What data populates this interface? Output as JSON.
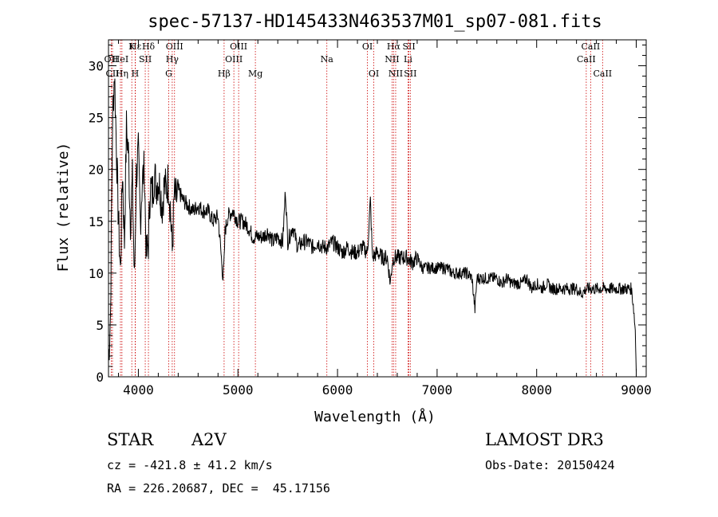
{
  "chart_data": {
    "type": "line",
    "title": "spec-57137-HD145433N463537M01_sp07-081.fits",
    "xlabel": "Wavelength (Å)",
    "ylabel": "Flux (relative)",
    "xlim": [
      3700,
      9100
    ],
    "ylim": [
      0,
      32.5
    ],
    "xticks": [
      4000,
      5000,
      6000,
      7000,
      8000,
      9000
    ],
    "yticks": [
      0,
      5,
      10,
      15,
      20,
      25,
      30
    ],
    "series": [
      {
        "name": "flux",
        "x": [
          3700,
          3720,
          3740,
          3760,
          3780,
          3800,
          3820,
          3840,
          3860,
          3880,
          3900,
          3920,
          3940,
          3960,
          3980,
          4000,
          4020,
          4040,
          4060,
          4080,
          4101,
          4120,
          4140,
          4160,
          4180,
          4200,
          4220,
          4240,
          4260,
          4280,
          4300,
          4320,
          4340,
          4360,
          4380,
          4400,
          4450,
          4500,
          4550,
          4600,
          4650,
          4700,
          4750,
          4800,
          4850,
          4861,
          4870,
          4900,
          4950,
          5000,
          5050,
          5100,
          5150,
          5200,
          5250,
          5300,
          5350,
          5400,
          5450,
          5477,
          5500,
          5550,
          5600,
          5650,
          5700,
          5750,
          5800,
          5850,
          5900,
          5950,
          6000,
          6050,
          6100,
          6150,
          6200,
          6250,
          6300,
          6330,
          6350,
          6400,
          6450,
          6500,
          6530,
          6550,
          6563,
          6580,
          6600,
          6650,
          6700,
          6750,
          6800,
          6850,
          6900,
          6950,
          7000,
          7050,
          7100,
          7150,
          7200,
          7250,
          7300,
          7350,
          7380,
          7400,
          7450,
          7500,
          7550,
          7600,
          7650,
          7700,
          7750,
          7800,
          7850,
          7900,
          7950,
          8000,
          8050,
          8100,
          8150,
          8200,
          8250,
          8300,
          8350,
          8400,
          8450,
          8500,
          8550,
          8600,
          8650,
          8700,
          8750,
          8800,
          8850,
          8900,
          8950,
          8970,
          8990,
          9000
        ],
        "y": [
          1.5,
          6,
          24.5,
          29.5,
          22,
          15,
          10,
          20,
          13,
          24,
          21.5,
          15,
          19,
          9,
          19.5,
          21.5,
          15,
          19,
          20,
          11.5,
          13,
          18.5,
          17.5,
          19.5,
          18.5,
          19,
          18,
          16.5,
          18.5,
          18,
          19,
          16.5,
          12,
          17.5,
          17,
          18,
          17,
          16.5,
          16,
          16.5,
          16,
          16,
          15,
          15.5,
          9.5,
          11,
          14,
          15.5,
          16,
          15,
          15,
          14.5,
          13.5,
          13.5,
          13.5,
          14,
          13,
          13.5,
          13,
          18,
          13,
          14.5,
          12.5,
          13,
          13,
          12.5,
          13,
          12.5,
          12.5,
          13,
          12.5,
          12,
          12.5,
          12,
          12,
          12.5,
          12,
          17,
          11.5,
          12,
          11.5,
          11.5,
          9,
          11,
          11.5,
          11.5,
          11.5,
          11.5,
          11.5,
          11,
          11.5,
          10.5,
          10.5,
          10.5,
          10.5,
          10.5,
          10.5,
          10,
          10,
          10,
          10,
          9.5,
          6.5,
          9.5,
          9.5,
          9.5,
          9.5,
          9.5,
          9,
          9.5,
          9,
          9,
          9,
          9.5,
          8.5,
          9,
          8.5,
          9,
          8.5,
          8.5,
          8.5,
          8.5,
          8.5,
          8.5,
          8,
          8.5,
          8.5,
          8.5,
          8.5,
          8.5,
          8.5,
          8.5,
          8.5,
          8.5,
          8.5,
          7,
          4.5,
          0.5
        ]
      }
    ],
    "line_markers": [
      {
        "label": "Hε",
        "x": 3970,
        "row": 1
      },
      {
        "label": "OII",
        "x": 3727,
        "row": 2
      },
      {
        "label": "HeI",
        "x": 3820,
        "row": 2
      },
      {
        "label": "CII",
        "x": 3740,
        "row": 3
      },
      {
        "label": "Hη",
        "x": 3835,
        "row": 3
      },
      {
        "label": "K",
        "x": 3934,
        "row": 1
      },
      {
        "label": "SII",
        "x": 4069,
        "row": 2
      },
      {
        "label": "H",
        "x": 3968,
        "row": 3
      },
      {
        "label": "Hδ",
        "x": 4101,
        "row": 1
      },
      {
        "label": "OIII",
        "x": 4363,
        "row": 1
      },
      {
        "label": "Hγ",
        "x": 4340,
        "row": 2
      },
      {
        "label": "G",
        "x": 4305,
        "row": 3
      },
      {
        "label": "Hβ",
        "x": 4861,
        "row": 3
      },
      {
        "label": "OIII",
        "x": 5007,
        "row": 1
      },
      {
        "label": "OIII",
        "x": 4959,
        "row": 2
      },
      {
        "label": "Mg",
        "x": 5175,
        "row": 3
      },
      {
        "label": "Na",
        "x": 5893,
        "row": 2
      },
      {
        "label": "OI",
        "x": 6300,
        "row": 1
      },
      {
        "label": "OI",
        "x": 6364,
        "row": 3
      },
      {
        "label": "Hα",
        "x": 6563,
        "row": 1
      },
      {
        "label": "NII",
        "x": 6548,
        "row": 2
      },
      {
        "label": "NII",
        "x": 6584,
        "row": 3
      },
      {
        "label": "SII",
        "x": 6717,
        "row": 1
      },
      {
        "label": "Li",
        "x": 6708,
        "row": 2
      },
      {
        "label": "SII",
        "x": 6731,
        "row": 3
      },
      {
        "label": "CaII",
        "x": 8542,
        "row": 1
      },
      {
        "label": "CaII",
        "x": 8498,
        "row": 2
      },
      {
        "label": "CaII",
        "x": 8662,
        "row": 3
      }
    ],
    "grid": false,
    "colors": {
      "line": "#000000",
      "marker": "#cc0000",
      "axis": "#000000"
    }
  },
  "info": {
    "object_class": "STAR",
    "subclass": "A2V",
    "survey": "LAMOST DR3",
    "cz": "cz = -421.8 ± 41.2 km/s",
    "obs_date": "Obs-Date: 20150424",
    "coords": "RA = 226.20687, DEC =  45.17156"
  }
}
